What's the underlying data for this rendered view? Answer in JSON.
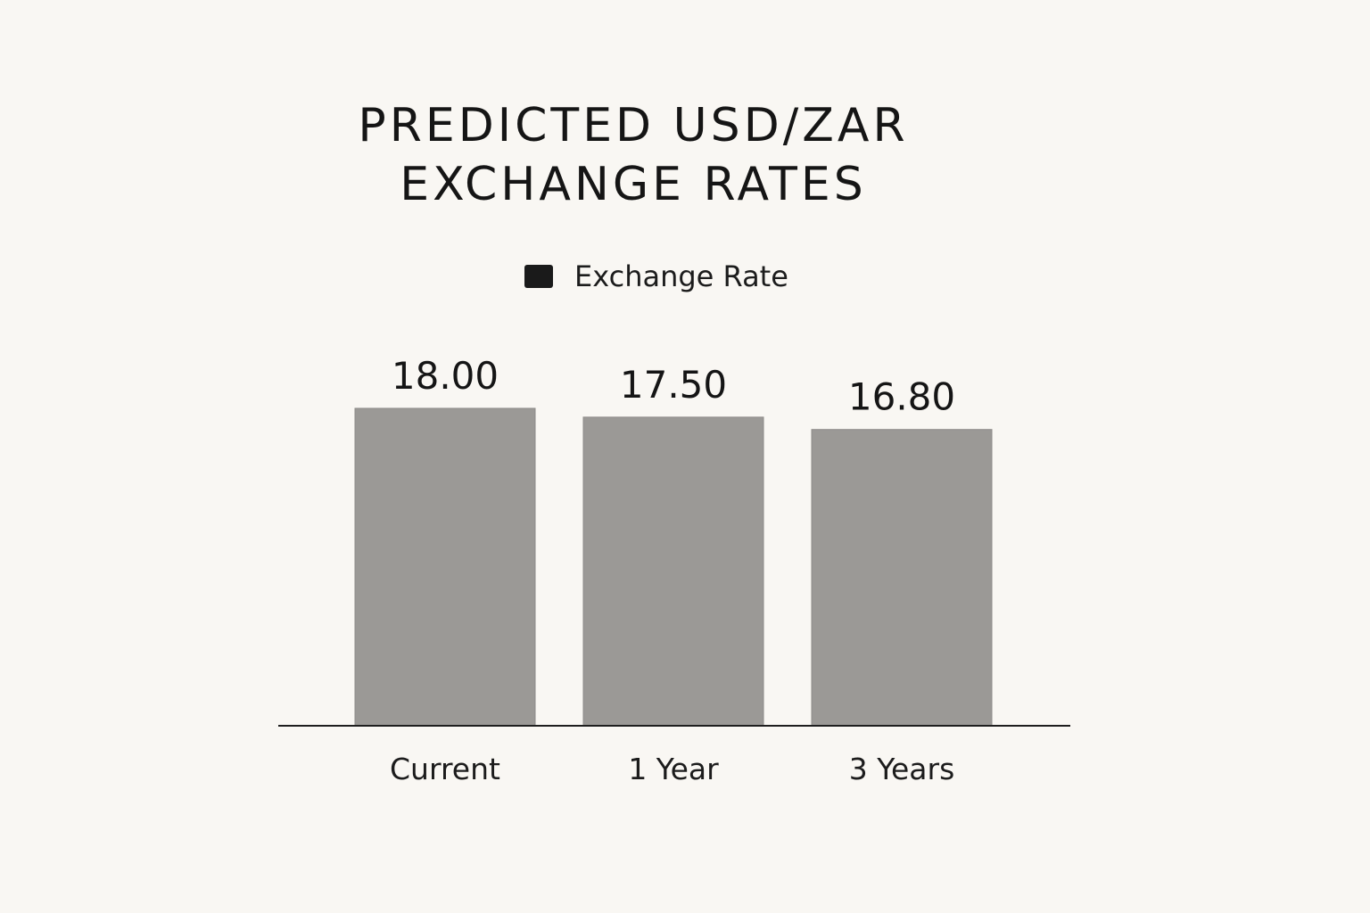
{
  "chart_data": {
    "type": "bar",
    "title_lines": [
      "PREDICTED USD/ZAR",
      "EXCHANGE RATES"
    ],
    "categories": [
      "Current",
      "1 Year",
      "3 Years"
    ],
    "series": [
      {
        "name": "Exchange Rate",
        "values": [
          18.0,
          17.5,
          16.8
        ],
        "value_labels": [
          "18.00",
          "17.50",
          "16.80"
        ]
      }
    ],
    "ylim": [
      0,
      20
    ],
    "grid": false,
    "legend_placement": "top-center",
    "colors": {
      "bar": "#9b9996",
      "legend_swatch": "#1a1a1a",
      "axis": "#1e1e1e",
      "background": "#f9f7f3"
    }
  }
}
